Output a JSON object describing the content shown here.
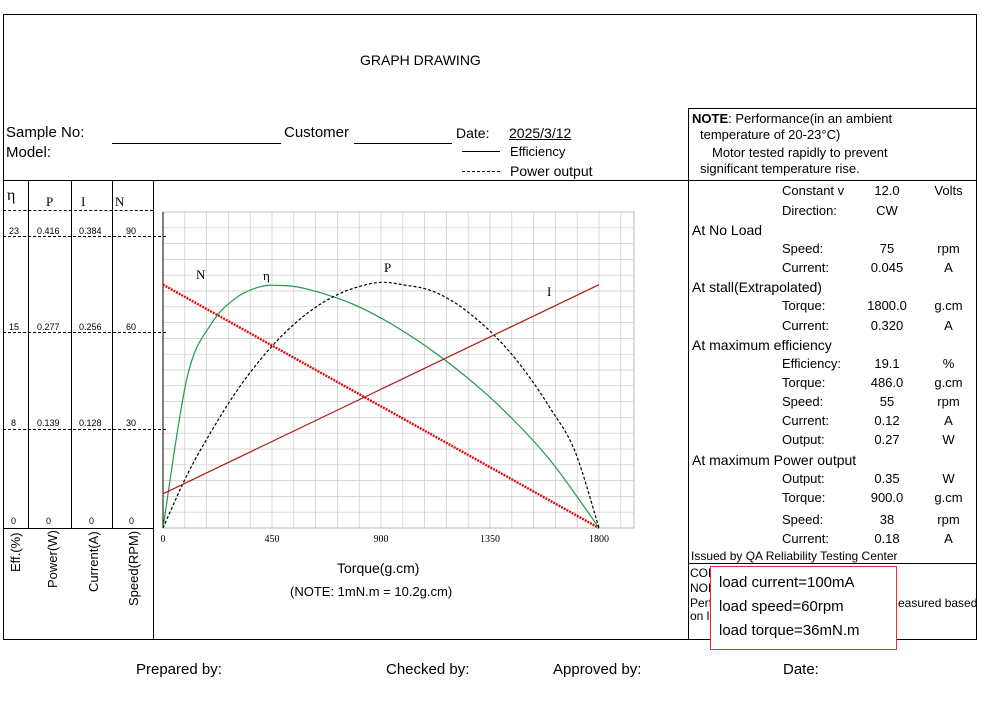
{
  "header": {
    "title": "GRAPH DRAWING",
    "sample_no_label": "Sample No:",
    "model_label": "Model:",
    "customer_label": "Customer",
    "date_label": "Date:",
    "date_value": "2025/3/12",
    "legend_efficiency": "Efficiency",
    "legend_power": "Power output"
  },
  "note": {
    "bold": "NOTE",
    "line1": ":  Performance(in an ambient",
    "line2": "temperature of 20-23°C)",
    "line3": "Motor tested rapidly to prevent",
    "line4": "significant temperature rise."
  },
  "left_axes": {
    "headers": [
      "η",
      "P",
      "I",
      "N"
    ],
    "eta_ticks": [
      "23",
      "15",
      "8",
      "0"
    ],
    "p_ticks": [
      "0.416",
      "0.277",
      "0.139",
      "0"
    ],
    "i_ticks": [
      "0.384",
      "0.256",
      "0.128",
      "0"
    ],
    "n_ticks": [
      "90",
      "60",
      "30",
      "0"
    ],
    "labels": [
      "Eff.(%)",
      "Power(W)",
      "Current(A)",
      "Speed(RPM)"
    ]
  },
  "chart_data": {
    "type": "line",
    "xlabel": "Torque(g.cm)",
    "note": "(NOTE: 1mN.m = 10.2g.cm)",
    "x_ticks": [
      "0",
      "450",
      "900",
      "1350",
      "1800"
    ],
    "xlim": [
      0,
      1800
    ],
    "curve_labels": {
      "speed": "N",
      "efficiency": "η",
      "power": "P",
      "current": "I"
    },
    "series": [
      {
        "name": "N",
        "axis": "Speed(RPM)",
        "x": [
          0,
          1800
        ],
        "values": [
          75,
          0
        ],
        "color": "#e01010"
      },
      {
        "name": "η",
        "axis": "Eff.(%)",
        "x": [
          0,
          100,
          200,
          300,
          400,
          486,
          600,
          800,
          1000,
          1200,
          1400,
          1600,
          1800
        ],
        "values": [
          0,
          11.9,
          16.1,
          18.1,
          19.0,
          19.1,
          18.8,
          17.5,
          15.4,
          12.7,
          9.4,
          5.3,
          0
        ],
        "color": "#1f9a4a"
      },
      {
        "name": "P",
        "axis": "Power(W)",
        "x": [
          0,
          100,
          200,
          300,
          400,
          500,
          600,
          700,
          800,
          900,
          1000,
          1100,
          1200,
          1300,
          1400,
          1500,
          1600,
          1700,
          1800
        ],
        "values": [
          0,
          0.076,
          0.138,
          0.193,
          0.239,
          0.277,
          0.307,
          0.329,
          0.343,
          0.35,
          0.346,
          0.339,
          0.322,
          0.296,
          0.263,
          0.221,
          0.17,
          0.11,
          0
        ],
        "color": "#000000",
        "dashed": true
      },
      {
        "name": "I",
        "axis": "Current(A)",
        "x": [
          0,
          1800
        ],
        "values": [
          0.045,
          0.32
        ],
        "color": "#b01818"
      }
    ]
  },
  "right_panel": {
    "rows": [
      {
        "label": "Constant v",
        "value": "12.0",
        "unit": "Volts",
        "indent": true
      },
      {
        "label": "Direction:",
        "value": "CW",
        "unit": "",
        "indent": true
      },
      {
        "label": "At No Load",
        "value": "",
        "unit": "",
        "indent": false
      },
      {
        "label": "Speed:",
        "value": "75",
        "unit": "rpm",
        "indent": true
      },
      {
        "label": "Current:",
        "value": "0.045",
        "unit": "A",
        "indent": true
      },
      {
        "label": "At stall(Extrapolated)",
        "value": "",
        "unit": "",
        "indent": false
      },
      {
        "label": "Torque:",
        "value": "1800.0",
        "unit": "g.cm",
        "indent": true
      },
      {
        "label": "Current:",
        "value": "0.320",
        "unit": "A",
        "indent": true
      },
      {
        "label": "At maximum efficiency",
        "value": "",
        "unit": "",
        "indent": false
      },
      {
        "label": "Efficiency:",
        "value": "19.1",
        "unit": "%",
        "indent": true
      },
      {
        "label": "Torque:",
        "value": "486.0",
        "unit": "g.cm",
        "indent": true
      },
      {
        "label": "Speed:",
        "value": "55",
        "unit": "rpm",
        "indent": true
      },
      {
        "label": "Current:",
        "value": "0.12",
        "unit": "A",
        "indent": true
      },
      {
        "label": "Output:",
        "value": "0.27",
        "unit": "W",
        "indent": true
      },
      {
        "label": "At maximum Power output",
        "value": "",
        "unit": "",
        "indent": false
      },
      {
        "label": "Output:",
        "value": "0.35",
        "unit": "W",
        "indent": true
      },
      {
        "label": "Torque:",
        "value": "900.0",
        "unit": "g.cm",
        "indent": true
      },
      {
        "label": "Speed:",
        "value": "38",
        "unit": "rpm",
        "indent": true
      },
      {
        "label": "Current:",
        "value": "0.18",
        "unit": "A",
        "indent": true
      }
    ],
    "issued_by": "Issued by QA Reliability Testing Center",
    "com_line": "CON",
    "nom_line": "NON",
    "perf_line_start": "Perf",
    "perf_line_end": "easured based",
    "perf_line2": "on li"
  },
  "popup": {
    "line1": "load current=100mA",
    "line2": "load speed=60rpm",
    "line3": "load torque=36mN.m"
  },
  "footer": {
    "prepared": "Prepared by:",
    "checked": "Checked by:",
    "approved": "Approved by:",
    "date": "Date:"
  }
}
